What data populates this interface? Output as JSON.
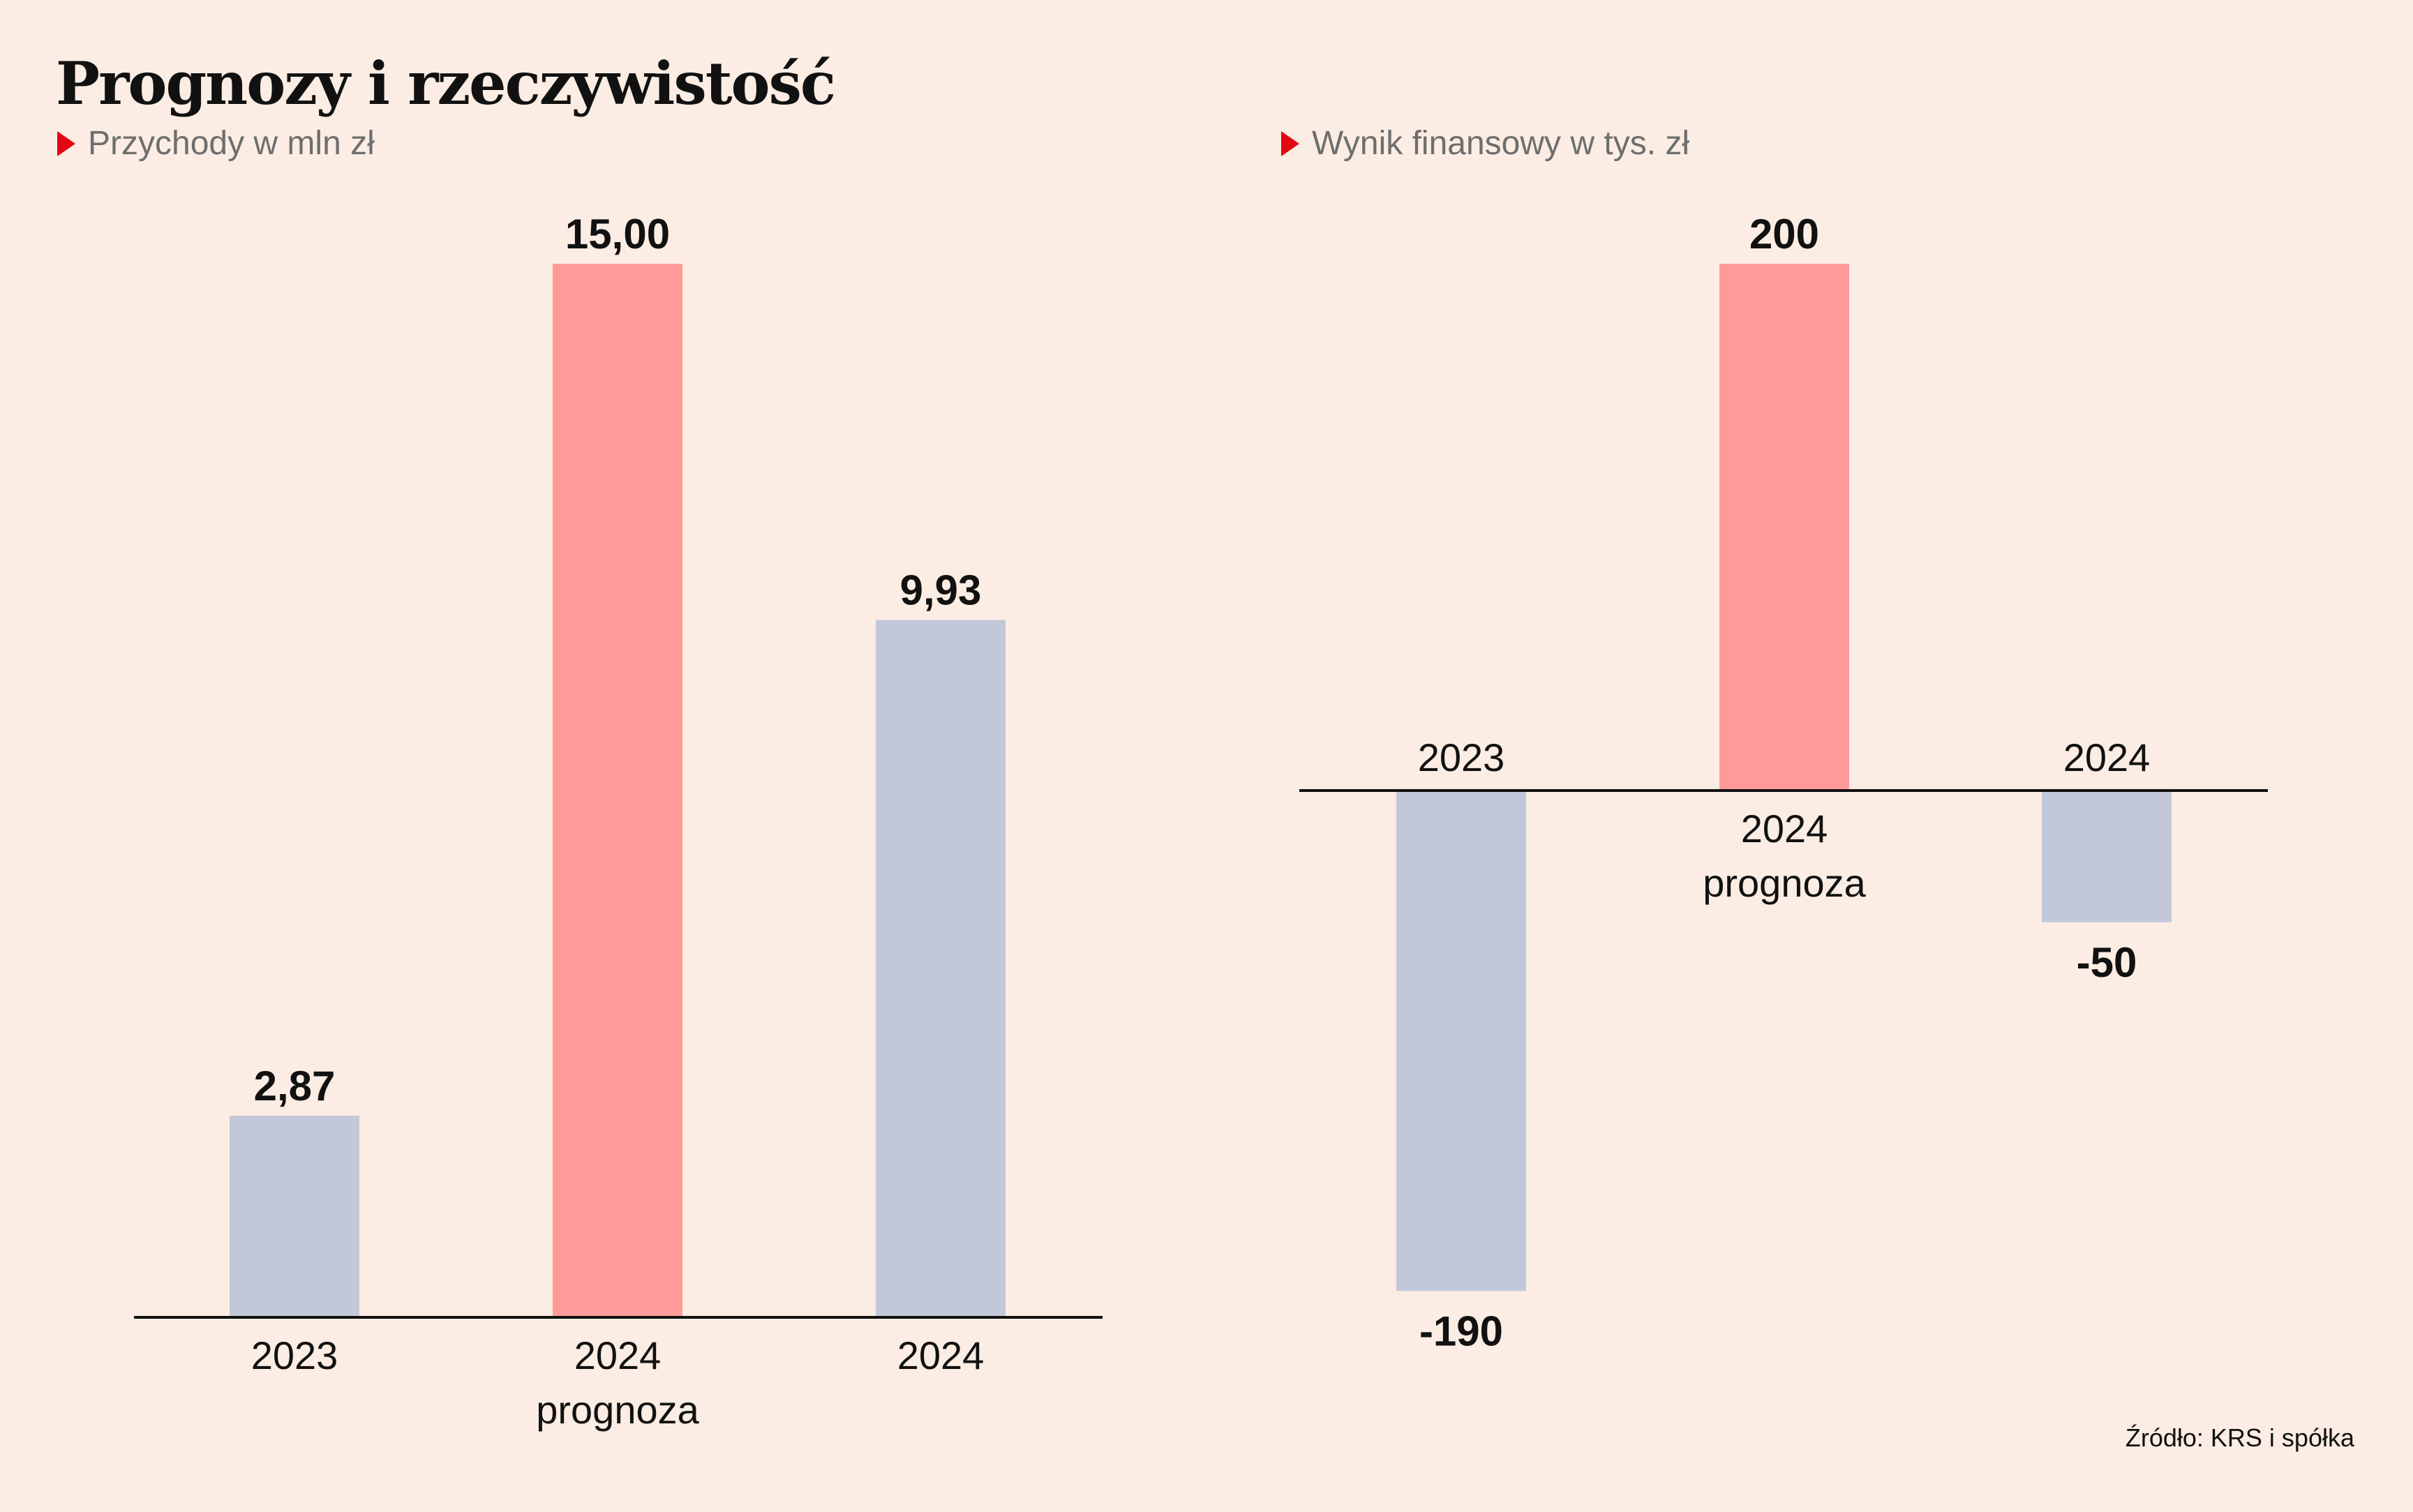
{
  "title": "Prognozy i rzeczywistość",
  "source": "Źródło: KRS i spółka",
  "colors": {
    "actual": "#c3c8d9",
    "forecast": "#fe9a9a",
    "marker": "#e30613",
    "background": "#fbede3"
  },
  "chart_data": [
    {
      "type": "bar",
      "subtitle": "Przychody w mln zł",
      "categories": [
        [
          "2023"
        ],
        [
          "2024",
          "prognoza"
        ],
        [
          "2024"
        ]
      ],
      "values": [
        2.87,
        15.0,
        9.93
      ],
      "value_labels": [
        "2,87",
        "15,00",
        "9,93"
      ],
      "kinds": [
        "actual",
        "forecast",
        "actual"
      ],
      "ylim": [
        0,
        15
      ]
    },
    {
      "type": "bar",
      "subtitle": "Wynik finansowy w tys. zł",
      "categories": [
        [
          "2023"
        ],
        [
          "2024",
          "prognoza"
        ],
        [
          "2024"
        ]
      ],
      "values": [
        -190,
        200,
        -50
      ],
      "value_labels": [
        "-190",
        "200",
        "-50"
      ],
      "kinds": [
        "actual",
        "forecast",
        "actual"
      ],
      "ylim": [
        -190,
        200
      ]
    }
  ]
}
